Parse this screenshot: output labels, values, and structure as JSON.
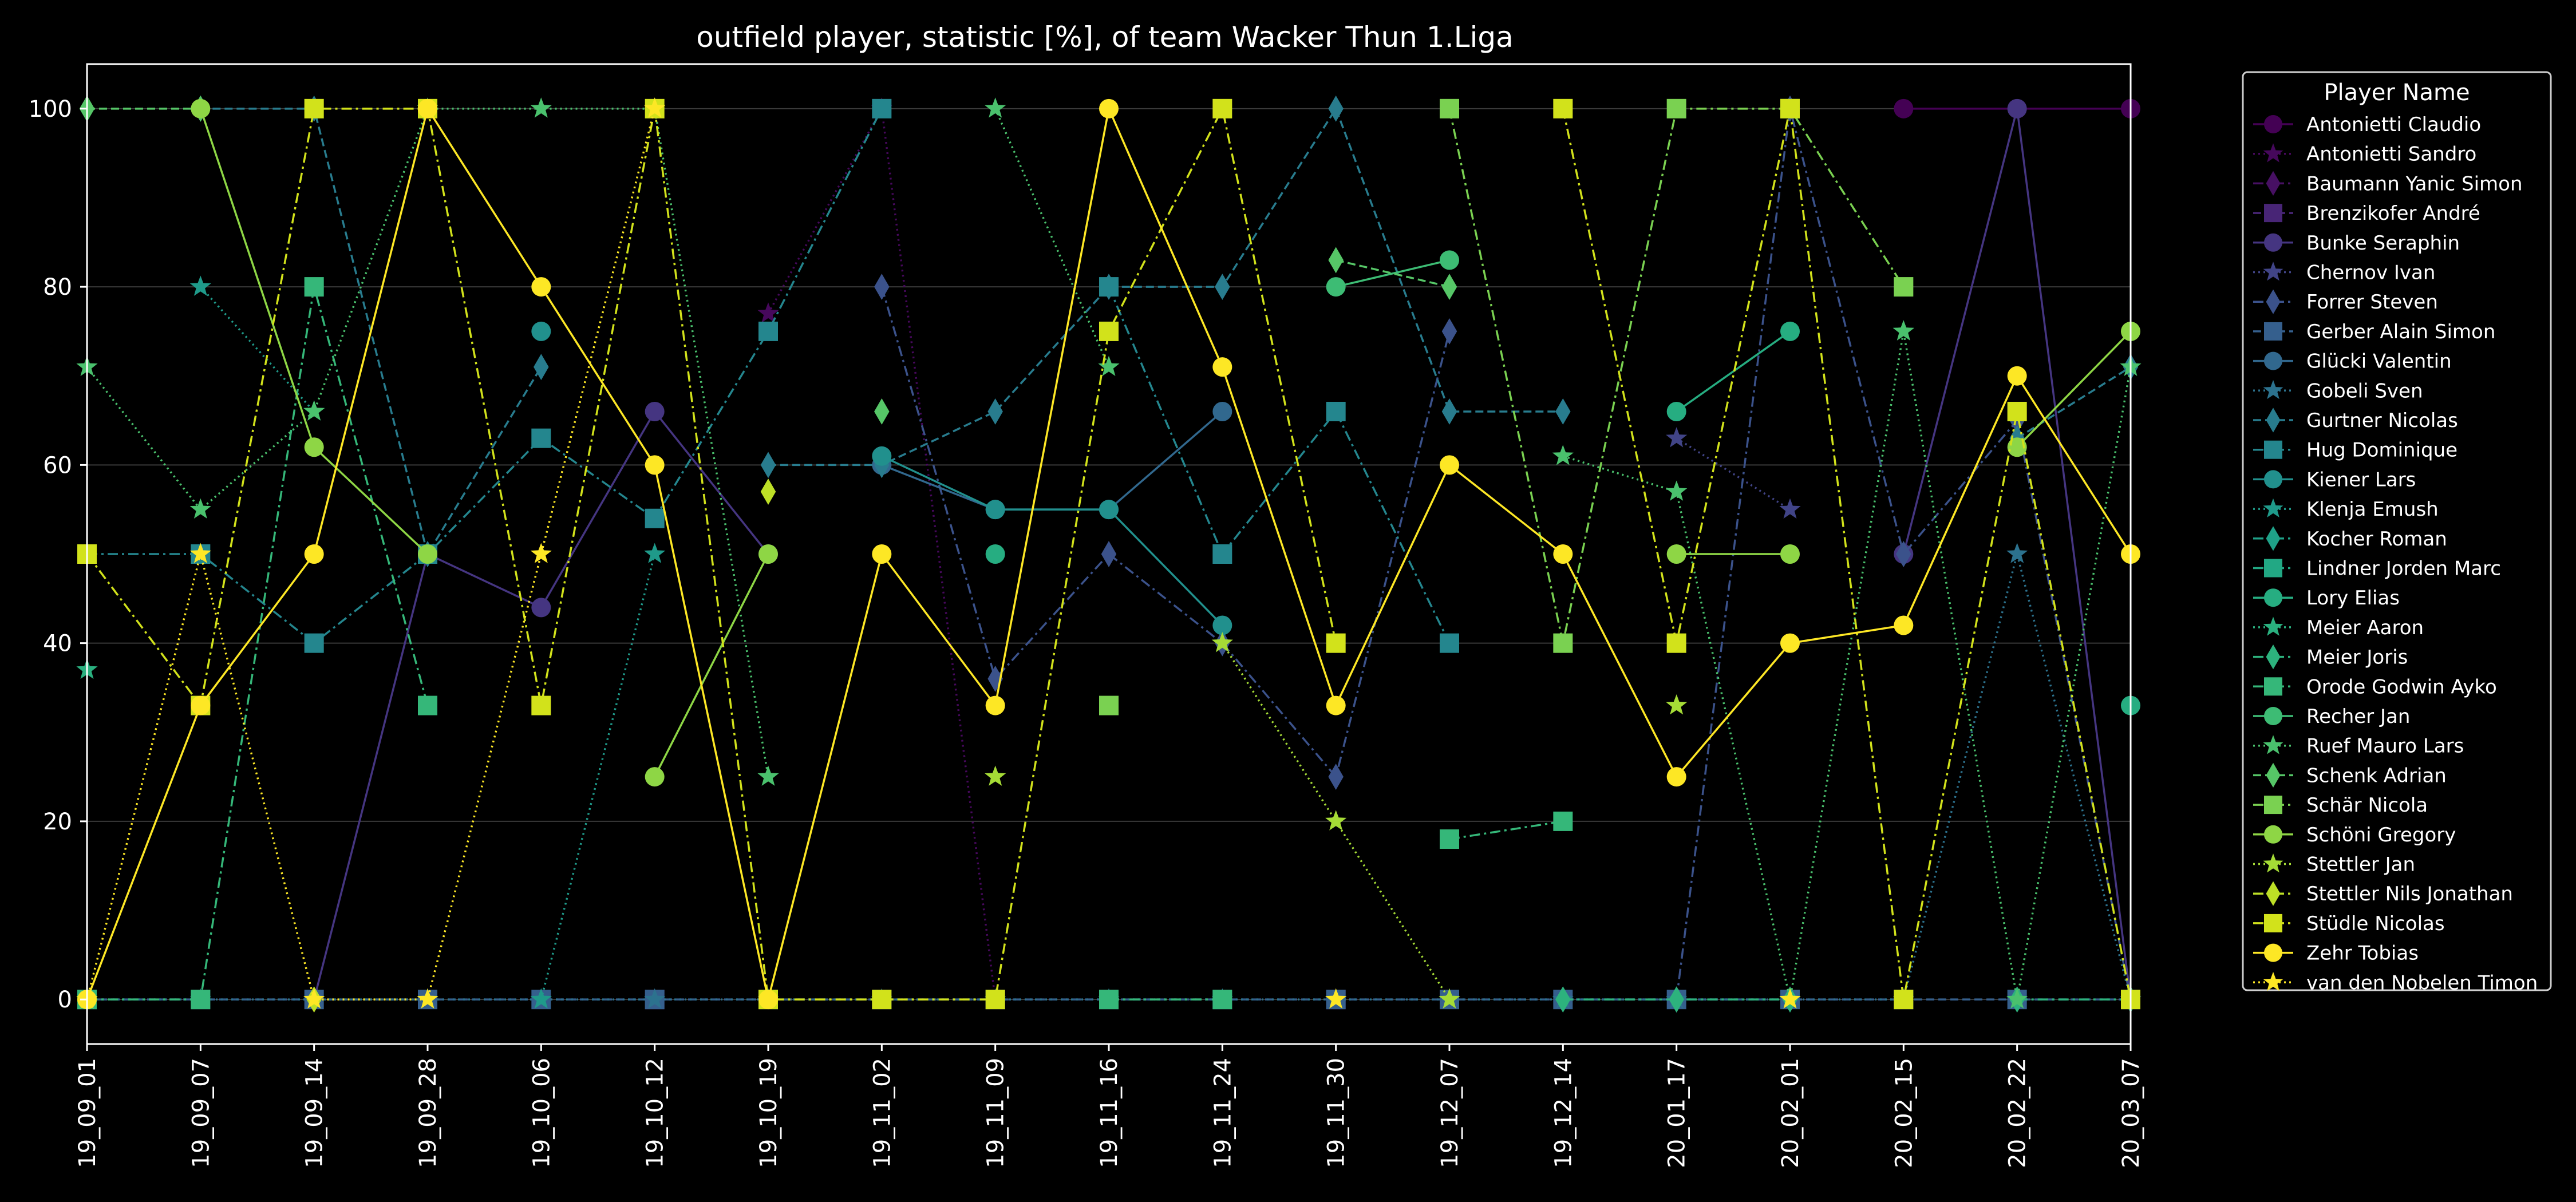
{
  "chart_data": {
    "type": "line",
    "title": "outfield player, statistic [%], of team Wacker Thun 1.Liga",
    "xlabel": "",
    "ylabel": "",
    "x": [
      "19_09_01",
      "19_09_07",
      "19_09_14",
      "19_09_28",
      "19_10_06",
      "19_10_12",
      "19_10_19",
      "19_11_02",
      "19_11_09",
      "19_11_16",
      "19_11_24",
      "19_11_30",
      "19_12_07",
      "19_12_14",
      "20_01_17",
      "20_02_01",
      "20_02_15",
      "20_02_22",
      "20_03_07"
    ],
    "yticks": [
      0,
      20,
      40,
      60,
      80,
      100
    ],
    "ylim": [
      -5,
      105
    ],
    "grid": "horizontal",
    "legend_title": "Player Name",
    "legend_position": "right",
    "series": [
      {
        "name": "Antonietti Claudio",
        "color": "#440154",
        "marker": "circle",
        "dash": "solid",
        "values": [
          null,
          null,
          null,
          null,
          null,
          null,
          null,
          null,
          null,
          null,
          null,
          null,
          null,
          null,
          null,
          null,
          100,
          100,
          100
        ]
      },
      {
        "name": "Antonietti Sandro",
        "color": "#46085c",
        "marker": "star",
        "dash": "dotted",
        "values": [
          null,
          null,
          null,
          null,
          null,
          null,
          77,
          100,
          0,
          null,
          null,
          null,
          null,
          null,
          null,
          null,
          null,
          null,
          null
        ]
      },
      {
        "name": "Baumann Yanic Simon",
        "color": "#471063",
        "marker": "diamond",
        "dash": "dashdot",
        "values": [
          null,
          null,
          null,
          null,
          null,
          null,
          null,
          null,
          null,
          null,
          null,
          null,
          null,
          null,
          null,
          null,
          null,
          null,
          null
        ]
      },
      {
        "name": "Brenzikofer André",
        "color": "#482576",
        "marker": "square",
        "dash": "dashed",
        "values": [
          null,
          null,
          null,
          null,
          null,
          0,
          null,
          null,
          null,
          null,
          null,
          0,
          null,
          null,
          null,
          null,
          null,
          null,
          null
        ]
      },
      {
        "name": "Bunke Seraphin",
        "color": "#453581",
        "marker": "circle",
        "dash": "solid",
        "values": [
          null,
          null,
          0,
          50,
          44,
          66,
          50,
          null,
          null,
          null,
          null,
          null,
          null,
          null,
          null,
          null,
          50,
          100,
          0
        ]
      },
      {
        "name": "Chernov Ivan",
        "color": "#414487",
        "marker": "star",
        "dash": "dotted",
        "values": [
          null,
          null,
          null,
          null,
          null,
          null,
          null,
          null,
          null,
          null,
          null,
          null,
          null,
          null,
          63,
          55,
          null,
          null,
          null
        ]
      },
      {
        "name": "Forrer Steven",
        "color": "#3b528b",
        "marker": "diamond",
        "dash": "dashdot",
        "values": [
          null,
          null,
          null,
          null,
          null,
          null,
          null,
          80,
          36,
          50,
          40,
          25,
          75,
          null,
          0,
          100,
          50,
          65,
          0
        ]
      },
      {
        "name": "Gerber Alain Simon",
        "color": "#355f8d",
        "marker": "square",
        "dash": "dashed",
        "values": [
          0,
          0,
          0,
          0,
          0,
          0,
          0,
          0,
          0,
          0,
          0,
          0,
          0,
          0,
          0,
          0,
          0,
          0,
          0
        ]
      },
      {
        "name": "Glücki Valentin",
        "color": "#31688e",
        "marker": "circle",
        "dash": "solid",
        "values": [
          null,
          null,
          null,
          null,
          null,
          null,
          null,
          60,
          55,
          55,
          66,
          null,
          null,
          null,
          null,
          null,
          null,
          null,
          null
        ]
      },
      {
        "name": "Gobeli Sven",
        "color": "#2c728e",
        "marker": "star",
        "dash": "dotted",
        "values": [
          0,
          0,
          0,
          0,
          0,
          0,
          0,
          0,
          0,
          0,
          0,
          0,
          0,
          0,
          0,
          0,
          0,
          50,
          0
        ]
      },
      {
        "name": "Gurtner Nicolas",
        "color": "#287c8e",
        "marker": "diamond",
        "dash": "dashed",
        "values": [
          null,
          100,
          100,
          50,
          71,
          null,
          60,
          60,
          66,
          80,
          80,
          100,
          66,
          66,
          null,
          null,
          null,
          63,
          71
        ]
      },
      {
        "name": "Hug Dominique",
        "color": "#24868e",
        "marker": "square",
        "dash": "dashdot",
        "values": [
          50,
          50,
          40,
          50,
          63,
          54,
          75,
          100,
          null,
          80,
          50,
          66,
          40,
          null,
          null,
          null,
          null,
          null,
          null
        ]
      },
      {
        "name": "Kiener Lars",
        "color": "#21908d",
        "marker": "circle",
        "dash": "solid",
        "values": [
          null,
          null,
          null,
          null,
          75,
          null,
          null,
          61,
          55,
          55,
          42,
          null,
          null,
          null,
          null,
          null,
          null,
          null,
          null
        ]
      },
      {
        "name": "Klenja Emush",
        "color": "#1f9a8a",
        "marker": "star",
        "dash": "dotted",
        "values": [
          null,
          80,
          66,
          null,
          0,
          50,
          null,
          null,
          null,
          null,
          null,
          null,
          null,
          null,
          null,
          null,
          null,
          null,
          null
        ]
      },
      {
        "name": "Kocher Roman",
        "color": "#1fa188",
        "marker": "diamond",
        "dash": "dashdot",
        "values": [
          null,
          null,
          null,
          null,
          null,
          null,
          null,
          null,
          null,
          null,
          null,
          null,
          null,
          null,
          null,
          null,
          null,
          null,
          null
        ]
      },
      {
        "name": "Lindner Jorden Marc",
        "color": "#22a884",
        "marker": "square",
        "dash": "dashdot",
        "values": [
          null,
          null,
          null,
          null,
          null,
          null,
          null,
          null,
          null,
          null,
          null,
          null,
          null,
          null,
          null,
          null,
          null,
          null,
          null
        ]
      },
      {
        "name": "Lory Elias",
        "color": "#26ad81",
        "marker": "circle",
        "dash": "solid",
        "values": [
          null,
          null,
          null,
          null,
          null,
          null,
          null,
          null,
          50,
          null,
          null,
          null,
          null,
          null,
          66,
          75,
          null,
          null,
          33
        ]
      },
      {
        "name": "Meier Aaron",
        "color": "#2ab07f",
        "marker": "star",
        "dash": "dotted",
        "values": [
          37,
          null,
          null,
          null,
          null,
          null,
          null,
          null,
          null,
          null,
          null,
          null,
          null,
          null,
          null,
          null,
          75,
          null,
          null
        ]
      },
      {
        "name": "Meier Joris",
        "color": "#2db27d",
        "marker": "diamond",
        "dash": "dashdot",
        "values": [
          null,
          null,
          null,
          null,
          null,
          null,
          null,
          null,
          null,
          null,
          null,
          null,
          null,
          0,
          0,
          0,
          null,
          0,
          0
        ]
      },
      {
        "name": "Orode Godwin Ayko",
        "color": "#35b779",
        "marker": "square",
        "dash": "dashdot",
        "values": [
          0,
          0,
          80,
          33,
          null,
          null,
          null,
          null,
          null,
          0,
          0,
          null,
          18,
          20,
          null,
          null,
          null,
          null,
          null
        ]
      },
      {
        "name": "Recher Jan",
        "color": "#3dbc74",
        "marker": "circle",
        "dash": "solid",
        "values": [
          null,
          null,
          null,
          null,
          null,
          null,
          null,
          null,
          null,
          null,
          null,
          80,
          83,
          null,
          null,
          null,
          null,
          null,
          null
        ]
      },
      {
        "name": "Ruef Mauro Lars",
        "color": "#4ac16d",
        "marker": "star",
        "dash": "dotted",
        "values": [
          71,
          55,
          66,
          100,
          100,
          100,
          25,
          null,
          100,
          71,
          null,
          null,
          null,
          61,
          57,
          0,
          75,
          0,
          71
        ]
      },
      {
        "name": "Schenk Adrian",
        "color": "#56c667",
        "marker": "diamond",
        "dash": "dashed",
        "values": [
          100,
          100,
          null,
          null,
          null,
          null,
          null,
          66,
          null,
          null,
          null,
          83,
          80,
          null,
          null,
          null,
          null,
          null,
          null
        ]
      },
      {
        "name": "Schär Nicola",
        "color": "#7ad151",
        "marker": "square",
        "dash": "dashdot",
        "values": [
          null,
          null,
          null,
          null,
          null,
          null,
          null,
          null,
          null,
          33,
          null,
          null,
          100,
          40,
          100,
          100,
          80,
          null,
          null
        ]
      },
      {
        "name": "Schöni Gregory",
        "color": "#8ed645",
        "marker": "circle",
        "dash": "solid",
        "values": [
          null,
          100,
          62,
          50,
          null,
          25,
          50,
          null,
          null,
          null,
          null,
          null,
          null,
          null,
          50,
          50,
          null,
          62,
          75
        ]
      },
      {
        "name": "Stettler Jan",
        "color": "#a5db36",
        "marker": "star",
        "dash": "dotted",
        "values": [
          null,
          null,
          null,
          null,
          null,
          null,
          null,
          null,
          25,
          null,
          40,
          20,
          0,
          null,
          33,
          null,
          null,
          null,
          null
        ]
      },
      {
        "name": "Stettler Nils Jonathan",
        "color": "#bddf26",
        "marker": "diamond",
        "dash": "dashdot",
        "values": [
          null,
          null,
          0,
          null,
          null,
          null,
          57,
          null,
          null,
          null,
          null,
          null,
          null,
          null,
          null,
          null,
          null,
          null,
          null
        ]
      },
      {
        "name": "Stüdle Nicolas",
        "color": "#d2e21b",
        "marker": "square",
        "dash": "dashdot",
        "values": [
          50,
          33,
          100,
          100,
          33,
          100,
          0,
          0,
          0,
          75,
          100,
          40,
          null,
          100,
          40,
          100,
          0,
          66,
          0
        ]
      },
      {
        "name": "Zehr Tobias",
        "color": "#fde725",
        "marker": "circle",
        "dash": "solid",
        "values": [
          0,
          33,
          50,
          100,
          80,
          60,
          0,
          50,
          33,
          100,
          71,
          33,
          60,
          50,
          25,
          40,
          42,
          70,
          50
        ]
      },
      {
        "name": "van den Nobelen Timon",
        "color": "#fde725",
        "marker": "star",
        "dash": "dotted",
        "values": [
          0,
          50,
          0,
          0,
          50,
          100,
          null,
          null,
          null,
          null,
          null,
          0,
          null,
          null,
          null,
          0,
          null,
          null,
          null
        ]
      }
    ]
  }
}
